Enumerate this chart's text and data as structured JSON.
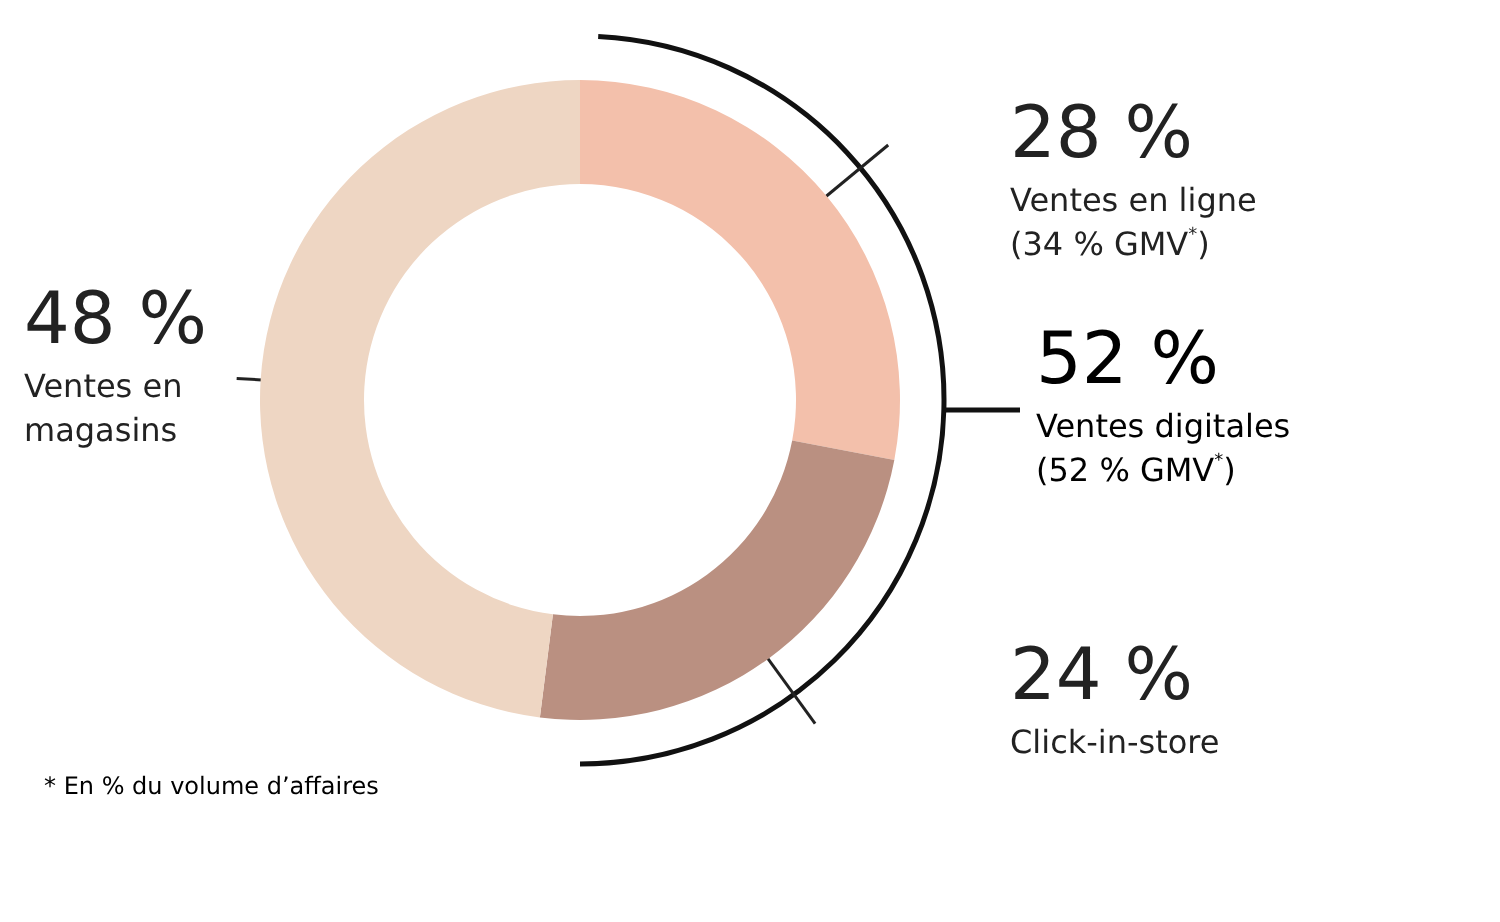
{
  "chart_data": {
    "type": "donut",
    "categories": [
      "Ventes en ligne\n(34 % GMV$^{*}$)",
      "Click-in-store",
      "Ventes en\nmagasins"
    ],
    "values": [
      28,
      24,
      48
    ],
    "value_labels": [
      "28 %",
      "24 %",
      "48 %"
    ],
    "colors": [
      "#f3c0ab",
      "#ba9081",
      "#eed6c3"
    ],
    "annotations": [
      "52 %\nVentes digitales\n(52 % GMV$^{*}$)",
      "* En % du volume d’affaires"
    ],
    "legend": false
  }
}
